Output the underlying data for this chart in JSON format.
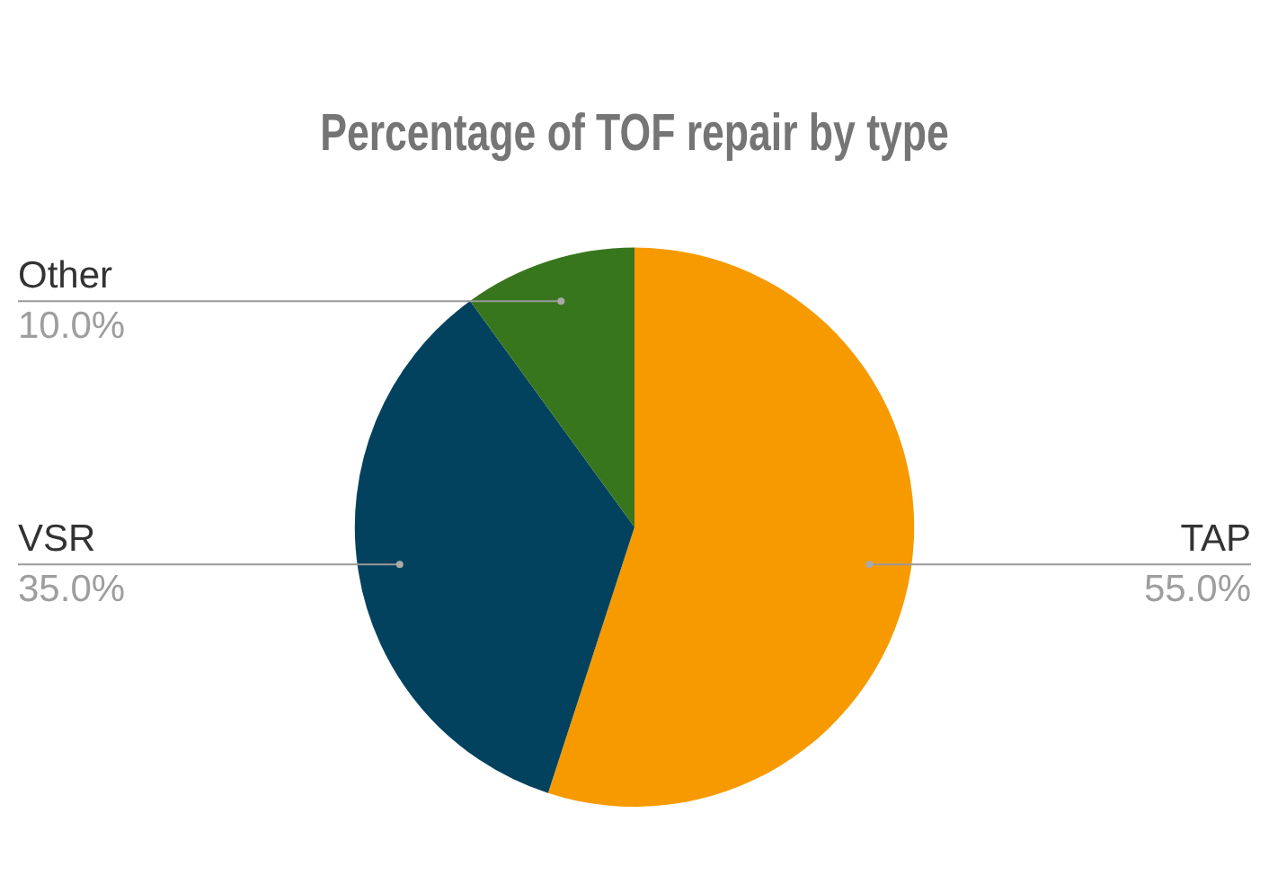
{
  "chart_data": {
    "type": "pie",
    "title": "Percentage of TOF repair by type",
    "categories": [
      "TAP",
      "VSR",
      "Other"
    ],
    "values": [
      55,
      35,
      10
    ],
    "colors": [
      "#f79a00",
      "#03425e",
      "#38761d"
    ],
    "value_labels": [
      "55.0%",
      "35.0%",
      "10.0%"
    ],
    "legend": false
  }
}
